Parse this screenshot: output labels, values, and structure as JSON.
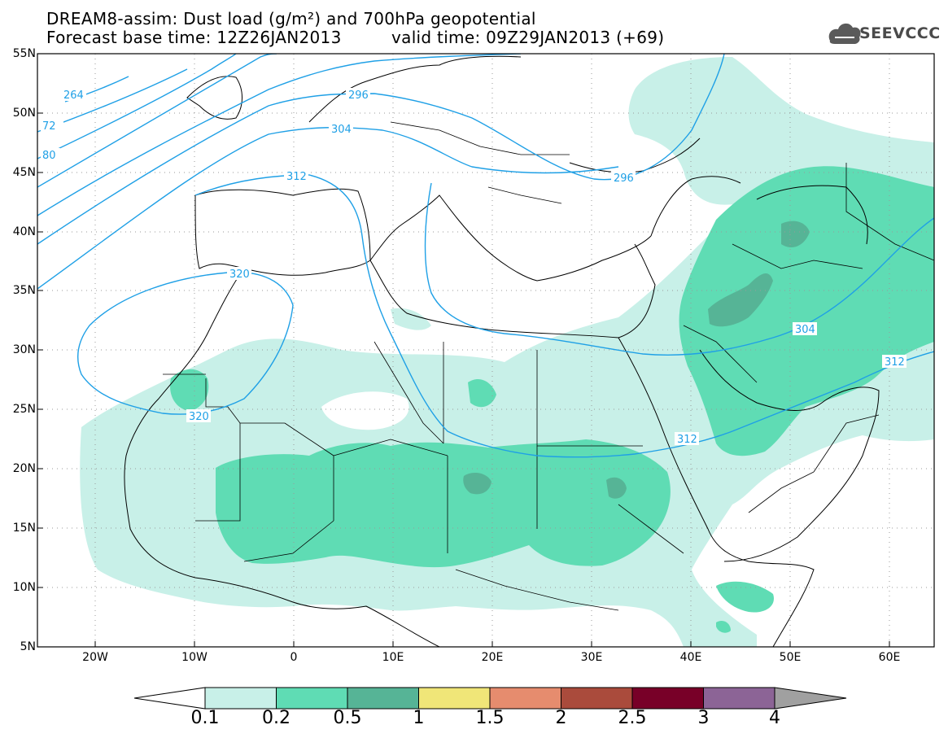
{
  "title": {
    "line1": "DREAM8-assim: Dust load (g/m²) and 700hPa geopotential",
    "line2_left": "Forecast base time: 12Z26JAN2013",
    "line2_right": "valid time: 09Z29JAN2013 (+69)"
  },
  "logo": {
    "text": "SEEVCCC",
    "icon": "cloud-icon"
  },
  "map": {
    "lon_range": [
      -25,
      65
    ],
    "lat_range": [
      5,
      55
    ],
    "lat_labels": [
      "55N",
      "50N",
      "45N",
      "40N",
      "35N",
      "30N",
      "25N",
      "20N",
      "15N",
      "10N",
      "5N"
    ],
    "lon_labels": [
      "20W",
      "10W",
      "0",
      "10E",
      "20E",
      "30E",
      "40E",
      "50E",
      "60E"
    ],
    "grid": "dotted"
  },
  "contours": {
    "color": "#1fa0e6",
    "labels": [
      "264",
      "72",
      "80",
      "296",
      "304",
      "312",
      "320",
      "296",
      "304",
      "312",
      "320",
      "312"
    ]
  },
  "colorbar": {
    "levels": [
      "0.1",
      "0.2",
      "0.5",
      "1",
      "1.5",
      "2",
      "2.5",
      "3",
      "4"
    ],
    "colors": [
      "#c8f0e8",
      "#5fdcb4",
      "#56b496",
      "#f0e678",
      "#e68c6e",
      "#aa4b3c",
      "#780028",
      "#8c6496",
      "#a0a0a0"
    ]
  }
}
